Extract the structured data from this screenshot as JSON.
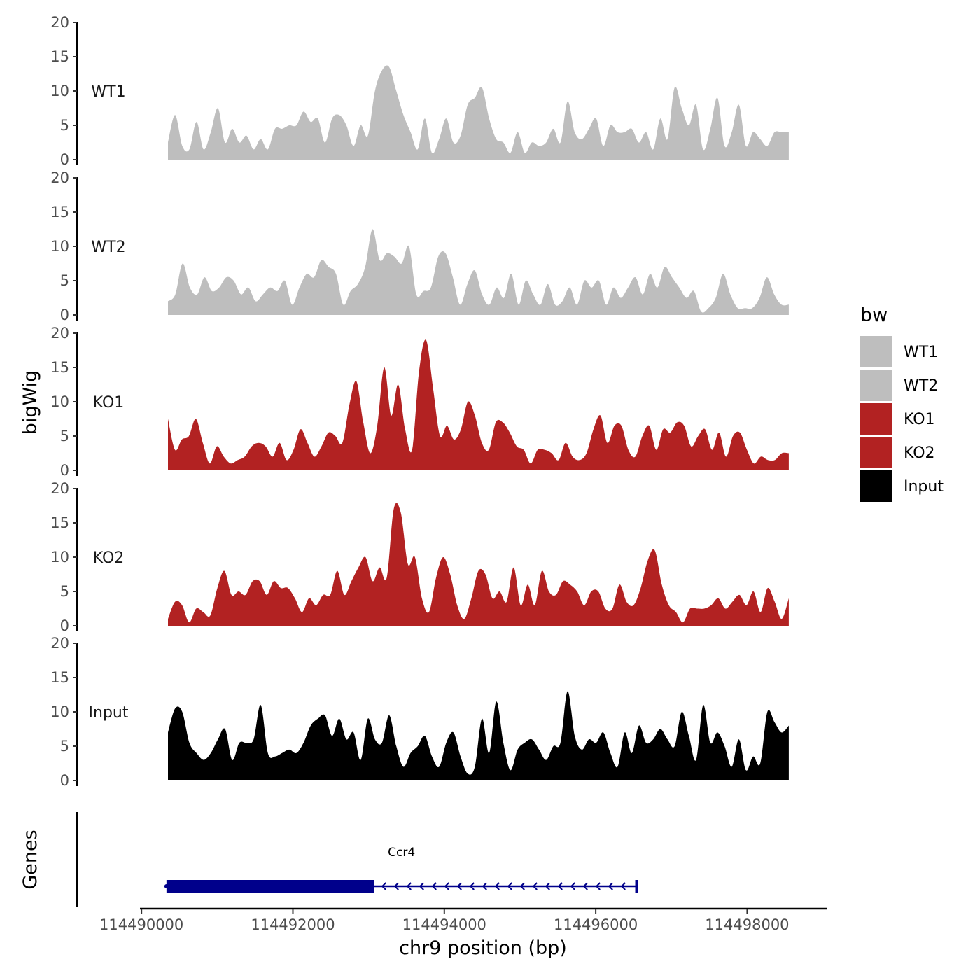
{
  "chart_data": {
    "type": "area",
    "title": "",
    "xlabel": "chr9 position (bp)",
    "ylabel": "bigWig",
    "genes_label": "Genes",
    "xlim": [
      114489980,
      114499050
    ],
    "x_ticks": [
      114490000,
      114492000,
      114494000,
      114496000,
      114498000
    ],
    "x_tick_labels": [
      "114490000",
      "114492000",
      "114494000",
      "114496000",
      "114498000"
    ],
    "ylim": [
      0,
      20
    ],
    "y_ticks": [
      0,
      5,
      10,
      15,
      20
    ],
    "y_tick_labels": [
      "0",
      "5",
      "10",
      "15",
      "20"
    ],
    "track_start": 114490350,
    "track_end": 114498550,
    "legend": {
      "title": "bw",
      "items": [
        {
          "name": "WT1",
          "color": "#bebebe"
        },
        {
          "name": "WT2",
          "color": "#bebebe"
        },
        {
          "name": "KO1",
          "color": "#b22222"
        },
        {
          "name": "KO2",
          "color": "#b22222"
        },
        {
          "name": "Input",
          "color": "#000000"
        }
      ]
    },
    "series": [
      {
        "name": "WT1",
        "color": "#bebebe",
        "values": [
          2.5,
          6.5,
          2,
          1.5,
          5.5,
          1.5,
          4,
          7.5,
          2.5,
          4.5,
          2.5,
          3.5,
          1.5,
          3,
          1.5,
          4.5,
          4.5,
          5,
          5,
          7,
          5.5,
          6,
          2.5,
          6,
          6.5,
          5,
          2,
          5,
          3.5,
          10,
          13,
          13.5,
          10,
          6.5,
          4,
          1.5,
          6,
          1,
          3,
          6,
          2.5,
          3.5,
          8,
          9,
          10.5,
          6,
          3,
          2.5,
          1,
          4,
          1,
          2.5,
          2,
          2.5,
          4.5,
          2.5,
          8.5,
          4,
          3,
          4.5,
          6,
          2,
          5,
          4,
          4,
          4.5,
          2.5,
          4,
          1.5,
          6,
          3,
          10.5,
          7.5,
          5,
          8,
          1.5,
          4.5,
          9,
          2,
          4,
          8,
          2,
          4,
          3,
          2,
          4,
          4,
          4
        ]
      },
      {
        "name": "WT2",
        "color": "#bebebe",
        "values": [
          2,
          3,
          7.5,
          4,
          3,
          5.5,
          3.5,
          4,
          5.5,
          5,
          3,
          4,
          2,
          3,
          4,
          3.5,
          5,
          1.5,
          4,
          6,
          5.5,
          8,
          7,
          6,
          1.5,
          3.5,
          4.5,
          7,
          12.5,
          8,
          9,
          8.5,
          7.5,
          10,
          3,
          3.5,
          4,
          8.5,
          9,
          5.5,
          1.5,
          4.5,
          6.5,
          3,
          1.5,
          4,
          2.5,
          6,
          1.5,
          5,
          3,
          1.5,
          4.5,
          1.5,
          2,
          4,
          1.5,
          5,
          4,
          5,
          1.5,
          4,
          2.5,
          4,
          5.5,
          3,
          6,
          4,
          7,
          5.5,
          4,
          2.5,
          3.5,
          0.5,
          1,
          2.5,
          6,
          3,
          1,
          1,
          1,
          2.5,
          5.5,
          3,
          1.5,
          1.5
        ]
      },
      {
        "name": "KO1",
        "color": "#b22222",
        "values": [
          7.5,
          3,
          4.5,
          5,
          7.5,
          4,
          1,
          3.5,
          2,
          1,
          1.5,
          2,
          3.5,
          4,
          3.5,
          2,
          4,
          1.5,
          3,
          6,
          4,
          2,
          3.5,
          5.5,
          5,
          4,
          9.5,
          13,
          7,
          2.5,
          6.5,
          15,
          8,
          12.5,
          6,
          3,
          14.5,
          19,
          12,
          5,
          6.5,
          4.5,
          6,
          10,
          8,
          4,
          3,
          7,
          7,
          5.5,
          3.5,
          3,
          1,
          3,
          3,
          2.5,
          1.5,
          4,
          2,
          1.5,
          2.5,
          6,
          8,
          4,
          6.5,
          6.5,
          3,
          2,
          5,
          6.5,
          3,
          6,
          5.5,
          7,
          6.5,
          3.5,
          5,
          6,
          3,
          5.5,
          2,
          5,
          5.5,
          3,
          1,
          2,
          1.5,
          1.5,
          2.5,
          2.5
        ]
      },
      {
        "name": "KO2",
        "color": "#b22222",
        "values": [
          1,
          3.5,
          3,
          0.5,
          2.5,
          2,
          1.5,
          5.5,
          8,
          4.5,
          5,
          4.5,
          6.5,
          6.5,
          4.5,
          6.5,
          5.5,
          5.5,
          4,
          2,
          4,
          3,
          4.5,
          4.5,
          8,
          4.5,
          6.5,
          8.5,
          10,
          6.5,
          8.5,
          7,
          17,
          16.5,
          9,
          10,
          4,
          2,
          7,
          10,
          7.5,
          3,
          1,
          4,
          8,
          7.5,
          4,
          5,
          3.5,
          8.5,
          3,
          6,
          3,
          8,
          5,
          4.5,
          6.5,
          6,
          5,
          3,
          5,
          5,
          2.5,
          2.5,
          6,
          3.5,
          3,
          5.5,
          9.5,
          11,
          6,
          3,
          2,
          0.5,
          2.5,
          2.5,
          2.5,
          3,
          4,
          2.5,
          3.5,
          4.5,
          3,
          5,
          2,
          5.5,
          3.5,
          1,
          4
        ]
      },
      {
        "name": "Input",
        "color": "#000000",
        "values": [
          7,
          10.5,
          10,
          5.5,
          4,
          3,
          4,
          6,
          7.5,
          3,
          5.5,
          5.5,
          6,
          11,
          4,
          3.5,
          4,
          4.5,
          4,
          5.5,
          8,
          9,
          9.5,
          6.5,
          9,
          6,
          7,
          3,
          9,
          6,
          5.5,
          9.5,
          5,
          2,
          4,
          5,
          6.5,
          3.5,
          2,
          5.5,
          7,
          3.5,
          1,
          2,
          9,
          4,
          11.5,
          5.5,
          1.5,
          4.5,
          5.5,
          6,
          4.5,
          3,
          5,
          5.5,
          13,
          6.5,
          4.5,
          6,
          5.5,
          7,
          4,
          2,
          7,
          4,
          8,
          5.5,
          6,
          7.5,
          6,
          5,
          10,
          6.5,
          3,
          11,
          5.5,
          7,
          5,
          2,
          6,
          1.5,
          3.5,
          2.5,
          10,
          8.5,
          7,
          8
        ]
      }
    ],
    "gene": {
      "name": "Ccr4",
      "strand": "-",
      "exon_thick": [
        114490330,
        114493070
      ],
      "intron": [
        114493070,
        114496540
      ],
      "tx_end": 114496540
    }
  }
}
